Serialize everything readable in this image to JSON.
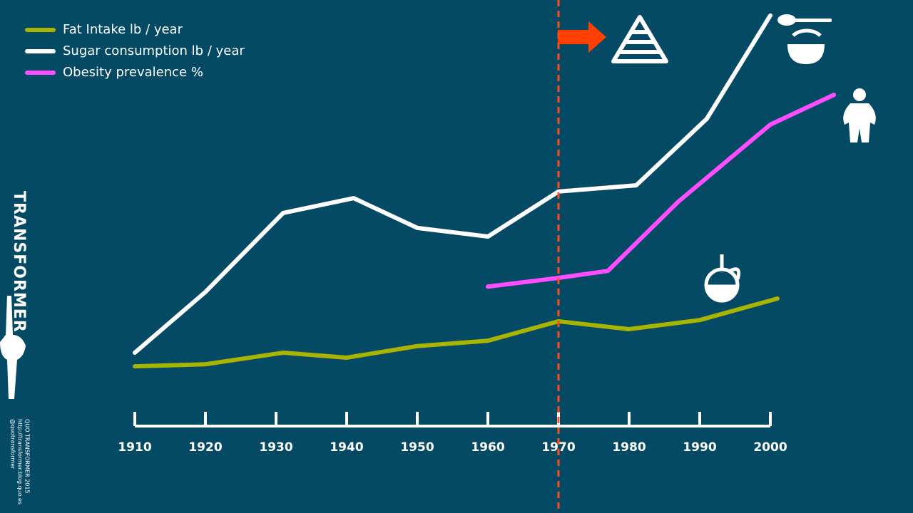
{
  "chart_data": {
    "type": "line",
    "brand": "TRANSFORMER",
    "credits": [
      "QUO TRANSFORMER 2015",
      "http://transformer.blog.quo.es",
      "@quotransformer"
    ],
    "xlim": [
      1910,
      2000
    ],
    "xticks": [
      1910,
      1920,
      1930,
      1940,
      1950,
      1960,
      1970,
      1980,
      1990,
      2000
    ],
    "ylim": [
      0,
      100
    ],
    "vline": 1970,
    "series": [
      {
        "name": "Fat Intake lb / year",
        "color": "#a9b400",
        "x": [
          1910,
          1920,
          1931,
          1940,
          1950,
          1960,
          1970,
          1980,
          1990,
          2001
        ],
        "values": [
          14.8,
          15.3,
          18.1,
          16.9,
          19.7,
          21.0,
          25.7,
          23.8,
          26.0,
          31.2
        ]
      },
      {
        "name": "Sugar consumption lb / year",
        "color": "#ffffff",
        "x": [
          1910,
          1920,
          1931,
          1941,
          1950,
          1960,
          1970,
          1981,
          1991,
          2000
        ],
        "values": [
          18.1,
          32.8,
          51.9,
          55.5,
          48.3,
          46.2,
          57.1,
          58.6,
          74.7,
          99.7
        ]
      },
      {
        "name": "Obesity prevalence %",
        "color": "#ff4dff",
        "x": [
          1960,
          1970,
          1977,
          1987,
          2000,
          2009
        ],
        "values": [
          34.1,
          36.2,
          37.9,
          54.7,
          73.3,
          80.5
        ]
      }
    ]
  }
}
